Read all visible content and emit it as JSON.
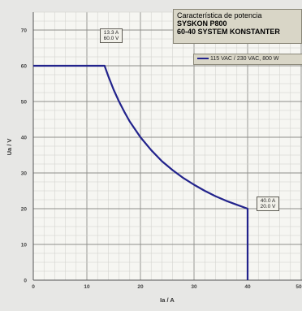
{
  "chart_data": {
    "type": "line",
    "title_lines": [
      "Característica de potencia",
      "SYSKON P800",
      "60-40 SYSTEM KONSTANTER"
    ],
    "xlabel": "Ia / A",
    "ylabel": "Ua / V",
    "xlim": [
      0,
      50
    ],
    "ylim": [
      0,
      75
    ],
    "x_ticks": [
      0,
      10,
      20,
      30,
      40,
      50
    ],
    "x_tick_labels": [
      "0",
      "10",
      "20",
      "30",
      "40",
      "50"
    ],
    "y_ticks": [
      0,
      10,
      20,
      30,
      40,
      50,
      60,
      70
    ],
    "y_tick_labels": [
      "0",
      "10",
      "20",
      "30",
      "40",
      "50",
      "60",
      "70"
    ],
    "grid": true,
    "legend_position": "top-right",
    "series": [
      {
        "name": "115 VAC / 230 VAC, 800 W",
        "color": "#22238c",
        "x": [
          0,
          13.3,
          14,
          15,
          16,
          17,
          18,
          20,
          22,
          24,
          26,
          28,
          30,
          32,
          34,
          36,
          38,
          40,
          40
        ],
        "y": [
          60,
          60,
          57.1,
          53.3,
          50,
          47.1,
          44.4,
          40,
          36.4,
          33.3,
          30.8,
          28.6,
          26.7,
          25,
          23.5,
          22.2,
          21.1,
          20,
          0
        ]
      }
    ],
    "annotations": [
      {
        "lines": [
          "13.3 A",
          "60.0 V"
        ],
        "x": 13.3,
        "y": 60
      },
      {
        "lines": [
          "40.0 A",
          "20.0 V"
        ],
        "x": 40,
        "y": 20
      }
    ]
  }
}
